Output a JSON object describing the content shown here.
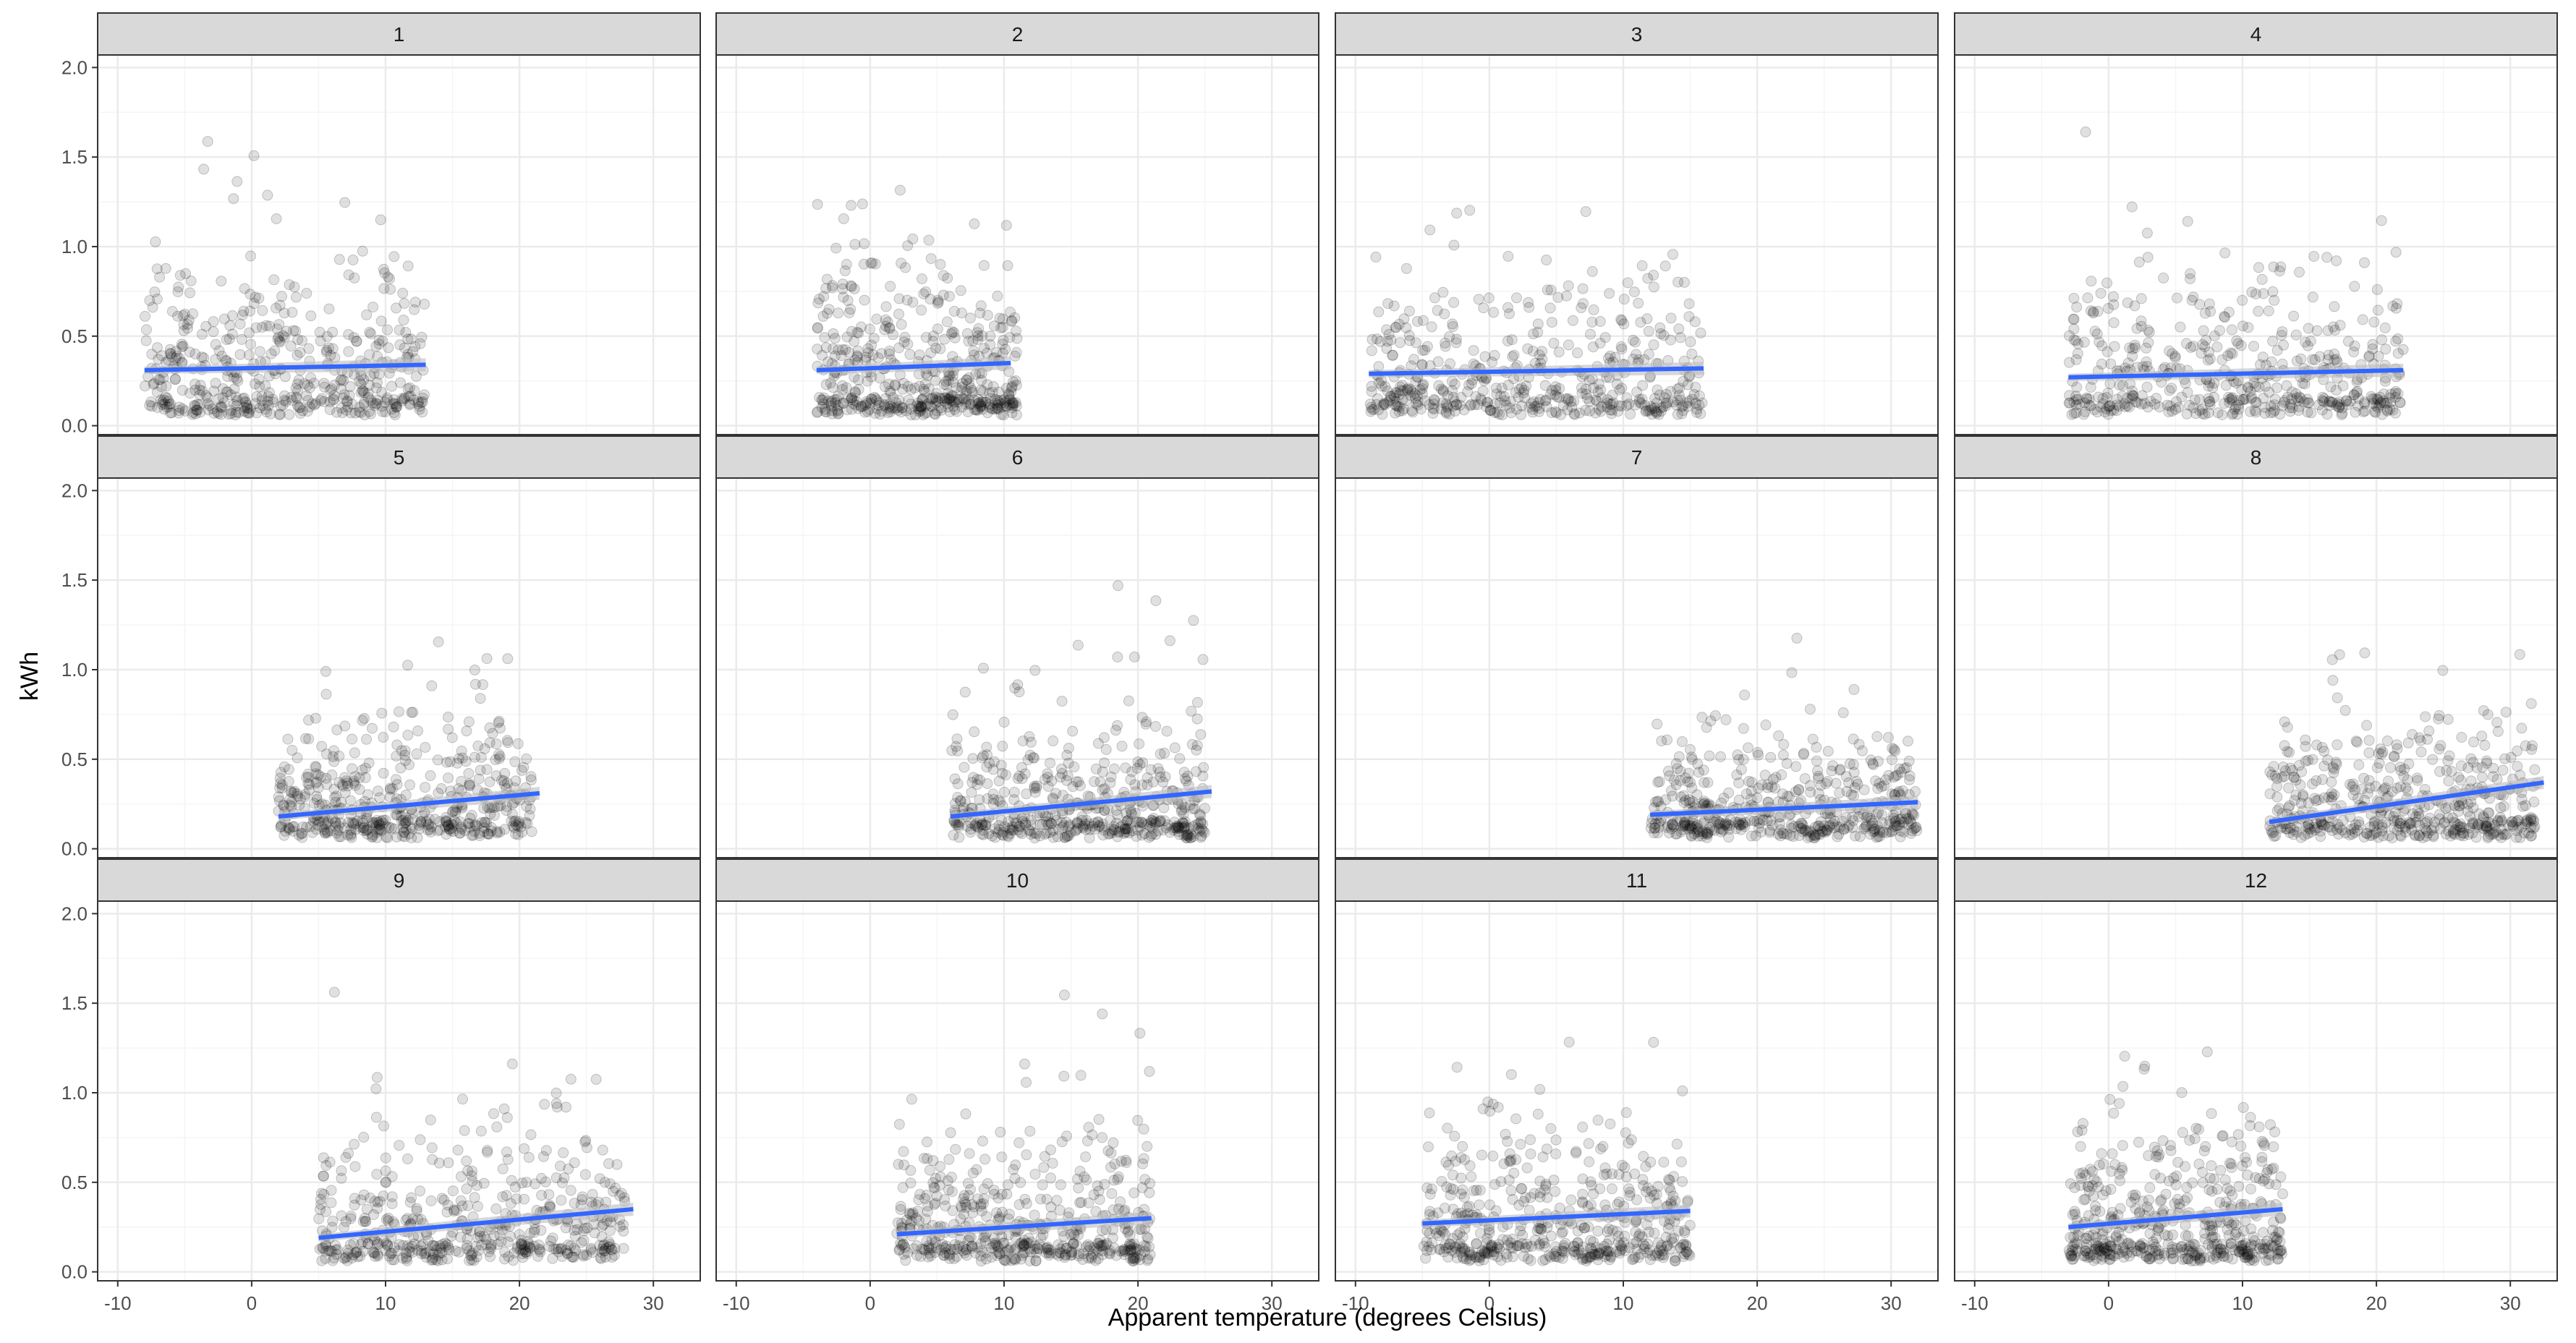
{
  "chart_data": {
    "type": "scatter",
    "title": "",
    "xlabel": "Apparent temperature (degrees Celsius)",
    "ylabel": "kWh",
    "xlim": [
      -11.5,
      33.5
    ],
    "ylim": [
      -0.05,
      2.07
    ],
    "x_ticks": [
      -10,
      0,
      10,
      20,
      30
    ],
    "y_ticks": [
      0.0,
      0.5,
      1.0,
      1.5,
      2.0
    ],
    "x_tick_labels": [
      "-10",
      "0",
      "10",
      "20",
      "30"
    ],
    "y_tick_labels": [
      "0.0",
      "0.5",
      "1.0",
      "1.5",
      "2.0"
    ],
    "grid": true,
    "legend": "none",
    "colors": {
      "points": "#000000",
      "trend": "#3366ff",
      "ribbon": "#bdbdbd",
      "strip": "#d9d9d9",
      "grid_major": "#ebebeb",
      "grid_minor": "#f5f5f5",
      "panel_border": "#333333"
    },
    "panels": [
      {
        "label": "1",
        "x_range": [
          -8,
          13
        ],
        "y_center": 0.35,
        "trend": {
          "x": [
            -8,
            13
          ],
          "y": [
            0.31,
            0.34
          ]
        }
      },
      {
        "label": "2",
        "x_range": [
          -4,
          11
        ],
        "y_center": 0.36,
        "trend": {
          "x": [
            -4,
            10.5
          ],
          "y": [
            0.31,
            0.35
          ]
        }
      },
      {
        "label": "3",
        "x_range": [
          -9,
          16
        ],
        "y_center": 0.33,
        "trend": {
          "x": [
            -9,
            16
          ],
          "y": [
            0.29,
            0.32
          ]
        }
      },
      {
        "label": "4",
        "x_range": [
          -3,
          22
        ],
        "y_center": 0.33,
        "trend": {
          "x": [
            -3,
            22
          ],
          "y": [
            0.27,
            0.31
          ]
        }
      },
      {
        "label": "5",
        "x_range": [
          2,
          21
        ],
        "y_center": 0.28,
        "trend": {
          "x": [
            2,
            21.5
          ],
          "y": [
            0.18,
            0.31
          ]
        }
      },
      {
        "label": "6",
        "x_range": [
          6,
          25
        ],
        "y_center": 0.26,
        "trend": {
          "x": [
            6,
            25.5
          ],
          "y": [
            0.18,
            0.32
          ]
        }
      },
      {
        "label": "7",
        "x_range": [
          12,
          32
        ],
        "y_center": 0.25,
        "trend": {
          "x": [
            12,
            32
          ],
          "y": [
            0.19,
            0.26
          ]
        }
      },
      {
        "label": "8",
        "x_range": [
          12,
          32
        ],
        "y_center": 0.27,
        "trend": {
          "x": [
            12,
            32.5
          ],
          "y": [
            0.15,
            0.37
          ]
        }
      },
      {
        "label": "9",
        "x_range": [
          5,
          28
        ],
        "y_center": 0.29,
        "trend": {
          "x": [
            5,
            28.5
          ],
          "y": [
            0.19,
            0.35
          ]
        }
      },
      {
        "label": "10",
        "x_range": [
          2,
          21
        ],
        "y_center": 0.29,
        "trend": {
          "x": [
            2,
            21
          ],
          "y": [
            0.21,
            0.3
          ]
        }
      },
      {
        "label": "11",
        "x_range": [
          -5,
          15
        ],
        "y_center": 0.33,
        "trend": {
          "x": [
            -5,
            15
          ],
          "y": [
            0.27,
            0.34
          ]
        }
      },
      {
        "label": "12",
        "x_range": [
          -3,
          13
        ],
        "y_center": 0.34,
        "trend": {
          "x": [
            -3,
            13
          ],
          "y": [
            0.25,
            0.35
          ]
        }
      }
    ],
    "points_per_panel": 500
  }
}
